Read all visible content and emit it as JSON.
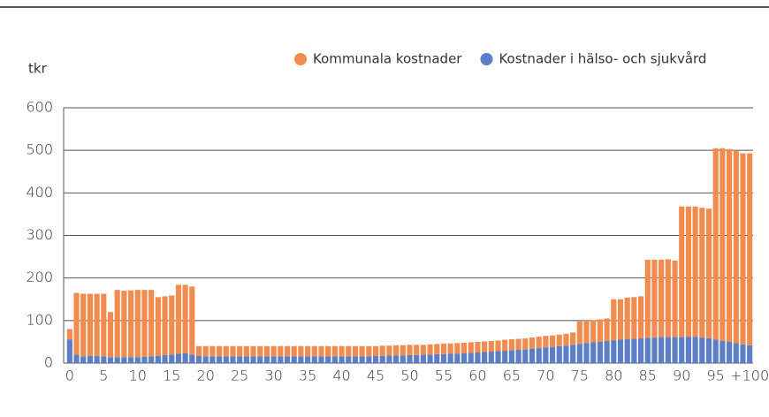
{
  "chart_data": {
    "type": "stacked_bar",
    "ylabel": "tkr",
    "categories": [
      "0",
      null,
      null,
      null,
      null,
      "5",
      null,
      null,
      null,
      null,
      "10",
      null,
      null,
      null,
      null,
      "15",
      null,
      null,
      null,
      null,
      "20",
      null,
      null,
      null,
      null,
      "25",
      null,
      null,
      null,
      null,
      "30",
      null,
      null,
      null,
      null,
      "35",
      null,
      null,
      null,
      null,
      "40",
      null,
      null,
      null,
      null,
      "45",
      null,
      null,
      null,
      null,
      "50",
      null,
      null,
      null,
      null,
      "55",
      null,
      null,
      null,
      null,
      "60",
      null,
      null,
      null,
      null,
      "65",
      null,
      null,
      null,
      null,
      "70",
      null,
      null,
      null,
      null,
      "75",
      null,
      null,
      null,
      null,
      "80",
      null,
      null,
      null,
      null,
      "85",
      null,
      null,
      null,
      null,
      "90",
      null,
      null,
      null,
      null,
      "95",
      null,
      null,
      null,
      null,
      "+100"
    ],
    "series": [
      {
        "name": "Kostnader i hälso- och sjukvård",
        "color": "#5b7ec6",
        "values": [
          55,
          20,
          16,
          17,
          17,
          16,
          14,
          14,
          14,
          14,
          14,
          15,
          16,
          17,
          19,
          20,
          22,
          23,
          20,
          17,
          16,
          16,
          16,
          16,
          16,
          16,
          16,
          16,
          16,
          16,
          16,
          16,
          16,
          16,
          16,
          16,
          16,
          16,
          16,
          16,
          16,
          16,
          16,
          16,
          16,
          17,
          17,
          18,
          18,
          18,
          19,
          19,
          20,
          20,
          21,
          21,
          22,
          22,
          23,
          24,
          25,
          26,
          27,
          28,
          29,
          30,
          31,
          32,
          34,
          35,
          37,
          38,
          40,
          41,
          43,
          45,
          47,
          49,
          50,
          52,
          53,
          55,
          56,
          57,
          58,
          59,
          60,
          61,
          61,
          61,
          61,
          62,
          62,
          60,
          58,
          55,
          52,
          50,
          47,
          44,
          42
        ]
      },
      {
        "name": "Kommunala kostnader",
        "color": "#f28b4f",
        "values": [
          25,
          145,
          147,
          146,
          146,
          147,
          106,
          158,
          156,
          157,
          158,
          157,
          156,
          138,
          138,
          139,
          162,
          161,
          160,
          23,
          24,
          24,
          24,
          24,
          24,
          24,
          24,
          24,
          24,
          24,
          24,
          24,
          24,
          24,
          24,
          24,
          24,
          24,
          24,
          24,
          24,
          24,
          24,
          24,
          24,
          23,
          24,
          23,
          24,
          24,
          24,
          24,
          23,
          24,
          24,
          25,
          24,
          25,
          25,
          25,
          25,
          25,
          25,
          25,
          26,
          26,
          26,
          26,
          26,
          27,
          27,
          27,
          27,
          28,
          29,
          53,
          53,
          52,
          53,
          53,
          97,
          95,
          98,
          98,
          99,
          184,
          183,
          182,
          183,
          180,
          307,
          306,
          306,
          305,
          305,
          450,
          453,
          453,
          453,
          449,
          451
        ]
      }
    ],
    "legend_order": [
      1,
      0
    ],
    "ylim": [
      0,
      600
    ],
    "yticks": [
      0,
      100,
      200,
      300,
      400,
      500,
      600
    ],
    "grid": true
  }
}
